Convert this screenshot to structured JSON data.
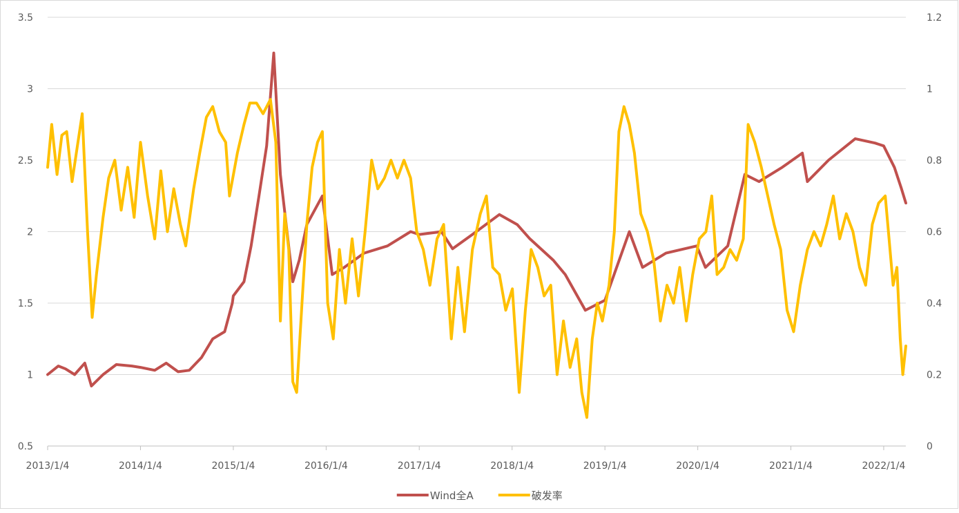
{
  "chart_data": {
    "type": "line",
    "title": "",
    "legend_position": "bottom",
    "grid": true,
    "x_tick_labels": [
      "2013/1/4",
      "2014/1/4",
      "2015/1/4",
      "2016/1/4",
      "2017/1/4",
      "2018/1/4",
      "2019/1/4",
      "2020/1/4",
      "2021/1/4",
      "2022/1/4"
    ],
    "x_range": [
      "2013/1/4",
      "2022/4/1"
    ],
    "y_left": {
      "min": 0.5,
      "max": 3.5,
      "ticks": [
        "0.5",
        "1",
        "1.5",
        "2",
        "2.5",
        "3",
        "3.5"
      ]
    },
    "y_right": {
      "min": 0,
      "max": 1.2,
      "ticks": [
        "0",
        "0.2",
        "0.4",
        "0.6",
        "0.8",
        "1",
        "1.2"
      ]
    },
    "series": [
      {
        "name": "Wind全A",
        "axis": "left",
        "color": "#C0504D",
        "points": [
          [
            "2013/1/4",
            1.0
          ],
          [
            "2013/2/15",
            1.06
          ],
          [
            "2013/3/15",
            1.04
          ],
          [
            "2013/4/20",
            1.0
          ],
          [
            "2013/5/30",
            1.08
          ],
          [
            "2013/6/25",
            0.92
          ],
          [
            "2013/8/10",
            1.0
          ],
          [
            "2013/10/1",
            1.07
          ],
          [
            "2013/12/1",
            1.06
          ],
          [
            "2014/1/4",
            1.05
          ],
          [
            "2014/3/1",
            1.03
          ],
          [
            "2014/4/15",
            1.08
          ],
          [
            "2014/6/1",
            1.02
          ],
          [
            "2014/7/15",
            1.03
          ],
          [
            "2014/9/1",
            1.12
          ],
          [
            "2014/10/15",
            1.25
          ],
          [
            "2014/12/1",
            1.3
          ],
          [
            "2014/12/31",
            1.5
          ],
          [
            "2015/1/4",
            1.55
          ],
          [
            "2015/2/15",
            1.65
          ],
          [
            "2015/3/15",
            1.9
          ],
          [
            "2015/4/15",
            2.25
          ],
          [
            "2015/5/15",
            2.6
          ],
          [
            "2015/6/12",
            3.25
          ],
          [
            "2015/7/8",
            2.4
          ],
          [
            "2015/8/26",
            1.65
          ],
          [
            "2015/9/20",
            1.8
          ],
          [
            "2015/10/20",
            2.05
          ],
          [
            "2015/12/20",
            2.25
          ],
          [
            "2016/1/28",
            1.7
          ],
          [
            "2016/3/15",
            1.75
          ],
          [
            "2016/6/1",
            1.85
          ],
          [
            "2016/9/1",
            1.9
          ],
          [
            "2016/12/1",
            2.0
          ],
          [
            "2017/1/4",
            1.98
          ],
          [
            "2017/4/1",
            2.0
          ],
          [
            "2017/5/15",
            1.88
          ],
          [
            "2017/8/1",
            1.98
          ],
          [
            "2017/11/15",
            2.12
          ],
          [
            "2018/1/24",
            2.05
          ],
          [
            "2018/3/15",
            1.95
          ],
          [
            "2018/6/15",
            1.8
          ],
          [
            "2018/8/1",
            1.7
          ],
          [
            "2018/10/19",
            1.45
          ],
          [
            "2019/1/4",
            1.52
          ],
          [
            "2019/3/1",
            1.8
          ],
          [
            "2019/4/10",
            2.0
          ],
          [
            "2019/6/1",
            1.75
          ],
          [
            "2019/9/1",
            1.85
          ],
          [
            "2019/12/31",
            1.9
          ],
          [
            "2020/2/3",
            1.75
          ],
          [
            "2020/5/1",
            1.9
          ],
          [
            "2020/7/7",
            2.4
          ],
          [
            "2020/9/1",
            2.35
          ],
          [
            "2020/12/1",
            2.45
          ],
          [
            "2021/2/18",
            2.55
          ],
          [
            "2021/3/10",
            2.35
          ],
          [
            "2021/6/1",
            2.5
          ],
          [
            "2021/9/14",
            2.65
          ],
          [
            "2021/12/1",
            2.62
          ],
          [
            "2022/1/4",
            2.6
          ],
          [
            "2022/2/15",
            2.45
          ],
          [
            "2022/3/15",
            2.3
          ],
          [
            "2022/4/1",
            2.2
          ]
        ]
      },
      {
        "name": "破发率",
        "axis": "right",
        "color": "#FFC000",
        "points": [
          [
            "2013/1/4",
            0.78
          ],
          [
            "2013/1/20",
            0.9
          ],
          [
            "2013/2/10",
            0.76
          ],
          [
            "2013/3/1",
            0.87
          ],
          [
            "2013/3/20",
            0.88
          ],
          [
            "2013/4/10",
            0.74
          ],
          [
            "2013/5/1",
            0.84
          ],
          [
            "2013/5/20",
            0.93
          ],
          [
            "2013/6/10",
            0.6
          ],
          [
            "2013/6/28",
            0.36
          ],
          [
            "2013/7/15",
            0.48
          ],
          [
            "2013/8/10",
            0.64
          ],
          [
            "2013/9/1",
            0.75
          ],
          [
            "2013/9/25",
            0.8
          ],
          [
            "2013/10/20",
            0.66
          ],
          [
            "2013/11/15",
            0.78
          ],
          [
            "2013/12/10",
            0.64
          ],
          [
            "2014/1/4",
            0.85
          ],
          [
            "2014/2/1",
            0.7
          ],
          [
            "2014/3/1",
            0.58
          ],
          [
            "2014/3/25",
            0.77
          ],
          [
            "2014/4/20",
            0.6
          ],
          [
            "2014/5/15",
            0.72
          ],
          [
            "2014/6/10",
            0.62
          ],
          [
            "2014/7/1",
            0.56
          ],
          [
            "2014/8/1",
            0.72
          ],
          [
            "2014/8/25",
            0.82
          ],
          [
            "2014/9/20",
            0.92
          ],
          [
            "2014/10/15",
            0.95
          ],
          [
            "2014/11/10",
            0.88
          ],
          [
            "2014/12/5",
            0.85
          ],
          [
            "2014/12/20",
            0.7
          ],
          [
            "2015/1/20",
            0.82
          ],
          [
            "2015/2/15",
            0.9
          ],
          [
            "2015/3/10",
            0.96
          ],
          [
            "2015/4/5",
            0.96
          ],
          [
            "2015/5/1",
            0.93
          ],
          [
            "2015/5/30",
            0.97
          ],
          [
            "2015/6/20",
            0.85
          ],
          [
            "2015/7/8",
            0.35
          ],
          [
            "2015/7/25",
            0.65
          ],
          [
            "2015/8/10",
            0.55
          ],
          [
            "2015/8/26",
            0.18
          ],
          [
            "2015/9/10",
            0.15
          ],
          [
            "2015/10/1",
            0.4
          ],
          [
            "2015/10/20",
            0.62
          ],
          [
            "2015/11/10",
            0.78
          ],
          [
            "2015/12/1",
            0.85
          ],
          [
            "2015/12/20",
            0.88
          ],
          [
            "2016/1/10",
            0.4
          ],
          [
            "2016/2/1",
            0.3
          ],
          [
            "2016/2/25",
            0.55
          ],
          [
            "2016/3/20",
            0.4
          ],
          [
            "2016/4/15",
            0.58
          ],
          [
            "2016/5/10",
            0.42
          ],
          [
            "2016/6/5",
            0.6
          ],
          [
            "2016/7/1",
            0.8
          ],
          [
            "2016/7/25",
            0.72
          ],
          [
            "2016/8/20",
            0.75
          ],
          [
            "2016/9/15",
            0.8
          ],
          [
            "2016/10/10",
            0.75
          ],
          [
            "2016/11/5",
            0.8
          ],
          [
            "2016/12/1",
            0.75
          ],
          [
            "2016/12/25",
            0.6
          ],
          [
            "2017/1/20",
            0.55
          ],
          [
            "2017/2/15",
            0.45
          ],
          [
            "2017/3/15",
            0.58
          ],
          [
            "2017/4/10",
            0.62
          ],
          [
            "2017/5/10",
            0.3
          ],
          [
            "2017/6/5",
            0.5
          ],
          [
            "2017/7/1",
            0.32
          ],
          [
            "2017/8/1",
            0.55
          ],
          [
            "2017/9/1",
            0.65
          ],
          [
            "2017/9/25",
            0.7
          ],
          [
            "2017/10/20",
            0.5
          ],
          [
            "2017/11/15",
            0.48
          ],
          [
            "2017/12/10",
            0.38
          ],
          [
            "2018/1/5",
            0.44
          ],
          [
            "2018/2/1",
            0.15
          ],
          [
            "2018/2/25",
            0.38
          ],
          [
            "2018/3/20",
            0.55
          ],
          [
            "2018/4/15",
            0.5
          ],
          [
            "2018/5/10",
            0.42
          ],
          [
            "2018/6/5",
            0.45
          ],
          [
            "2018/6/30",
            0.2
          ],
          [
            "2018/7/25",
            0.35
          ],
          [
            "2018/8/20",
            0.22
          ],
          [
            "2018/9/15",
            0.3
          ],
          [
            "2018/10/5",
            0.15
          ],
          [
            "2018/10/25",
            0.08
          ],
          [
            "2018/11/15",
            0.3
          ],
          [
            "2018/12/5",
            0.4
          ],
          [
            "2018/12/25",
            0.35
          ],
          [
            "2019/1/20",
            0.45
          ],
          [
            "2019/2/10",
            0.6
          ],
          [
            "2019/2/28",
            0.88
          ],
          [
            "2019/3/20",
            0.95
          ],
          [
            "2019/4/10",
            0.9
          ],
          [
            "2019/4/30",
            0.82
          ],
          [
            "2019/5/25",
            0.65
          ],
          [
            "2019/6/20",
            0.6
          ],
          [
            "2019/7/15",
            0.52
          ],
          [
            "2019/8/10",
            0.35
          ],
          [
            "2019/9/5",
            0.45
          ],
          [
            "2019/10/1",
            0.4
          ],
          [
            "2019/10/25",
            0.5
          ],
          [
            "2019/11/20",
            0.35
          ],
          [
            "2019/12/15",
            0.48
          ],
          [
            "2020/1/10",
            0.58
          ],
          [
            "2020/2/5",
            0.6
          ],
          [
            "2020/2/28",
            0.7
          ],
          [
            "2020/3/20",
            0.48
          ],
          [
            "2020/4/15",
            0.5
          ],
          [
            "2020/5/10",
            0.55
          ],
          [
            "2020/6/5",
            0.52
          ],
          [
            "2020/7/1",
            0.58
          ],
          [
            "2020/7/20",
            0.9
          ],
          [
            "2020/8/15",
            0.85
          ],
          [
            "2020/9/10",
            0.78
          ],
          [
            "2020/10/5",
            0.7
          ],
          [
            "2020/10/30",
            0.62
          ],
          [
            "2020/11/25",
            0.55
          ],
          [
            "2020/12/20",
            0.38
          ],
          [
            "2021/1/15",
            0.32
          ],
          [
            "2021/2/10",
            0.45
          ],
          [
            "2021/3/10",
            0.55
          ],
          [
            "2021/4/5",
            0.6
          ],
          [
            "2021/5/1",
            0.56
          ],
          [
            "2021/5/25",
            0.62
          ],
          [
            "2021/6/20",
            0.7
          ],
          [
            "2021/7/15",
            0.58
          ],
          [
            "2021/8/10",
            0.65
          ],
          [
            "2021/9/5",
            0.6
          ],
          [
            "2021/10/1",
            0.5
          ],
          [
            "2021/10/25",
            0.45
          ],
          [
            "2021/11/20",
            0.62
          ],
          [
            "2021/12/15",
            0.68
          ],
          [
            "2022/1/10",
            0.7
          ],
          [
            "2022/1/25",
            0.58
          ],
          [
            "2022/2/10",
            0.45
          ],
          [
            "2022/2/25",
            0.5
          ],
          [
            "2022/3/10",
            0.3
          ],
          [
            "2022/3/20",
            0.2
          ],
          [
            "2022/4/1",
            0.28
          ]
        ]
      }
    ]
  }
}
